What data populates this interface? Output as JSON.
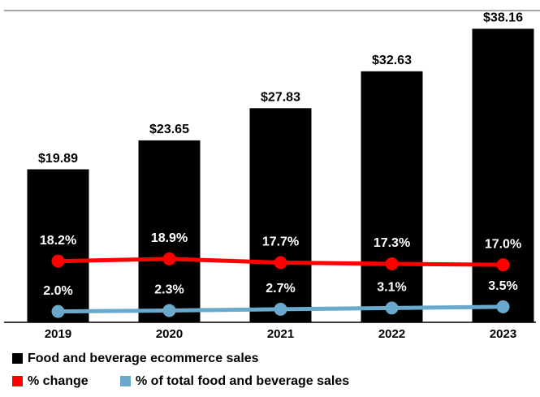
{
  "chart_data": {
    "type": "bar",
    "categories": [
      "2019",
      "2020",
      "2021",
      "2022",
      "2023"
    ],
    "series": [
      {
        "name": "Food and beverage ecommerce sales",
        "type": "bar",
        "color": "#000000",
        "values": [
          19.89,
          23.65,
          27.83,
          32.63,
          38.16
        ],
        "value_labels": [
          "$19.89",
          "$23.65",
          "$27.83",
          "$32.63",
          "$38.16"
        ]
      },
      {
        "name": "% change",
        "type": "line",
        "axis": "y2",
        "color": "#ff0000",
        "values": [
          18.2,
          18.9,
          17.7,
          17.3,
          17.0
        ],
        "value_labels": [
          "18.2%",
          "18.9%",
          "17.7%",
          "17.3%",
          "17.0%"
        ]
      },
      {
        "name": "% of total food and beverage sales",
        "type": "line",
        "axis": "y2",
        "color": "#6aa9cc",
        "values": [
          2.0,
          2.3,
          2.7,
          3.1,
          3.5
        ],
        "value_labels": [
          "2.0%",
          "2.3%",
          "2.7%",
          "3.1%",
          "3.5%"
        ]
      }
    ],
    "ylim": [
      0,
      40
    ],
    "y2lim": [
      -1.5,
      97.5
    ]
  }
}
